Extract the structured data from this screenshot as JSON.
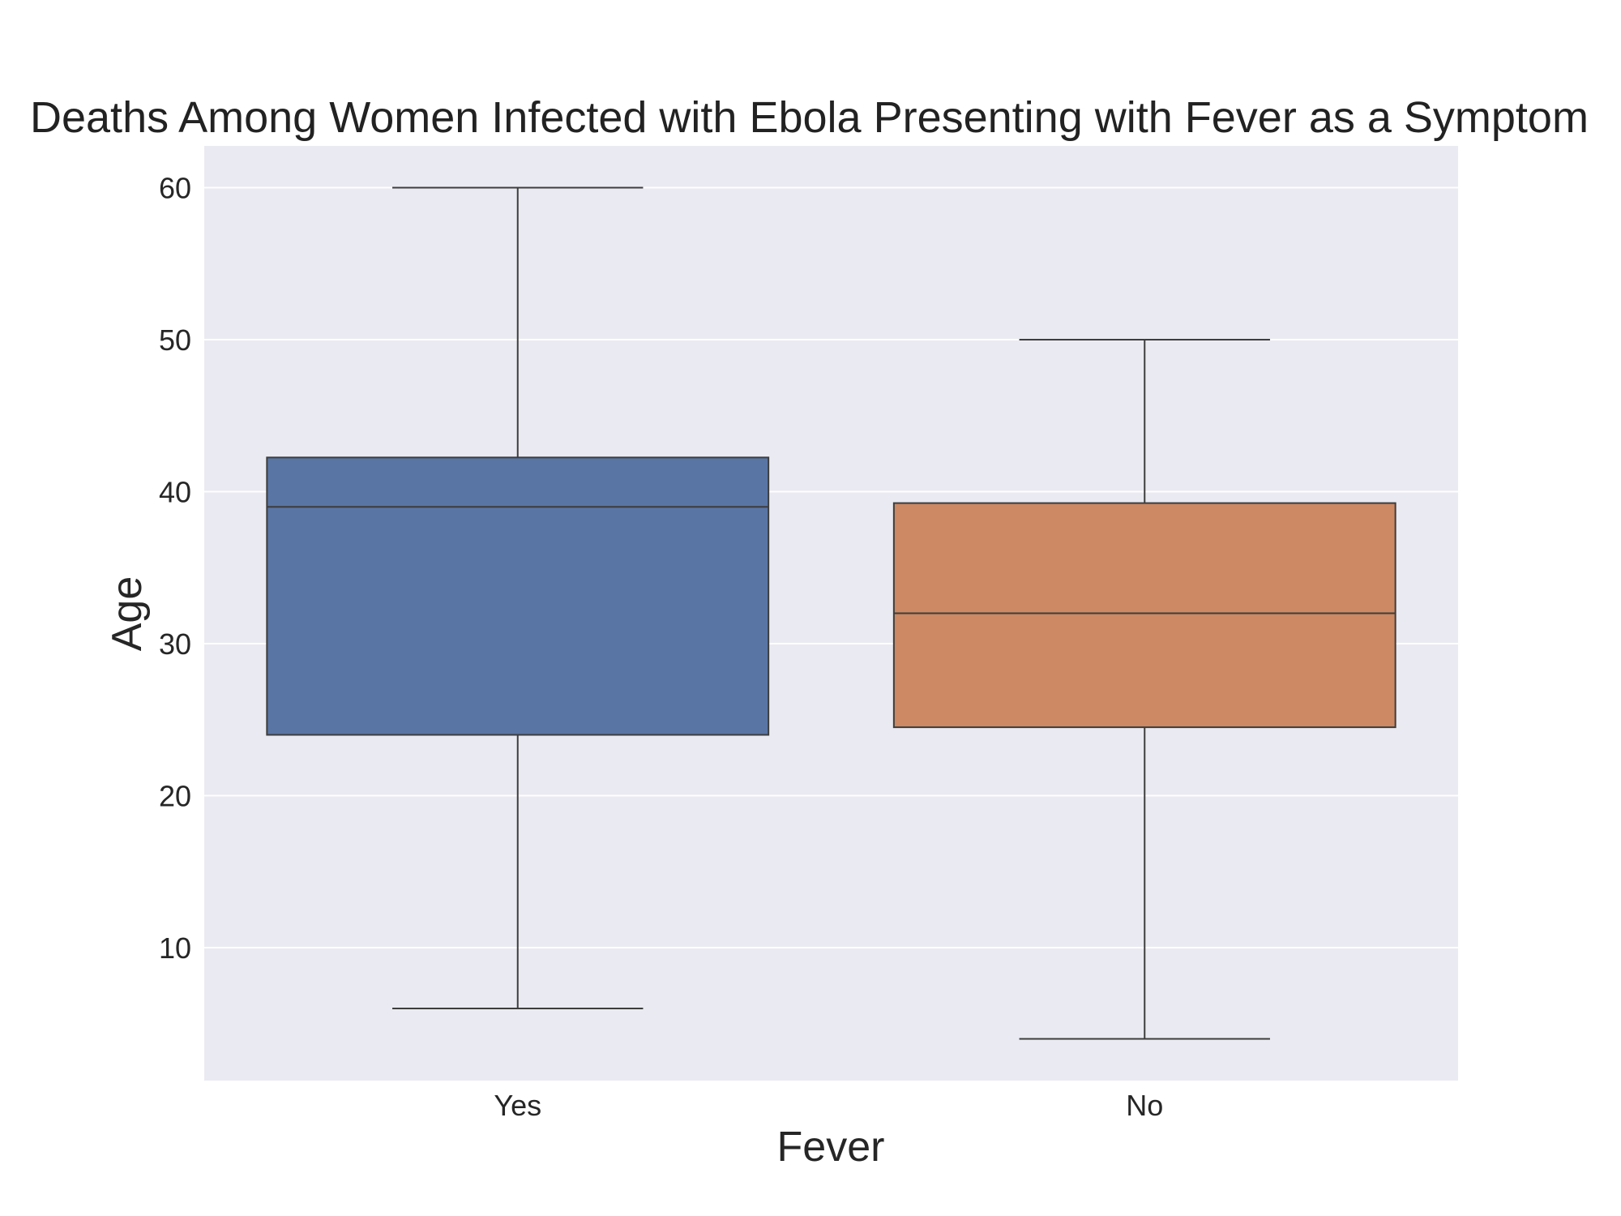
{
  "chart_data": {
    "type": "box",
    "title": "Deaths Among Women Infected with Ebola Presenting with Fever as a Symptom",
    "xlabel": "Fever",
    "ylabel": "Age",
    "categories": [
      "Yes",
      "No"
    ],
    "boxes": [
      {
        "category": "Yes",
        "whisker_low": 6,
        "q1": 24,
        "median": 39,
        "q3": 42.25,
        "whisker_high": 60,
        "color": "#5975a4"
      },
      {
        "category": "No",
        "whisker_low": 4,
        "q1": 24.5,
        "median": 32,
        "q3": 39.25,
        "whisker_high": 50,
        "color": "#cc8963"
      }
    ],
    "yticks": [
      10,
      20,
      30,
      40,
      50,
      60
    ],
    "ylim": [
      1.25,
      62.75
    ],
    "grid": true,
    "background": "#eaeaf2",
    "line_color": "#3d3d3d"
  }
}
